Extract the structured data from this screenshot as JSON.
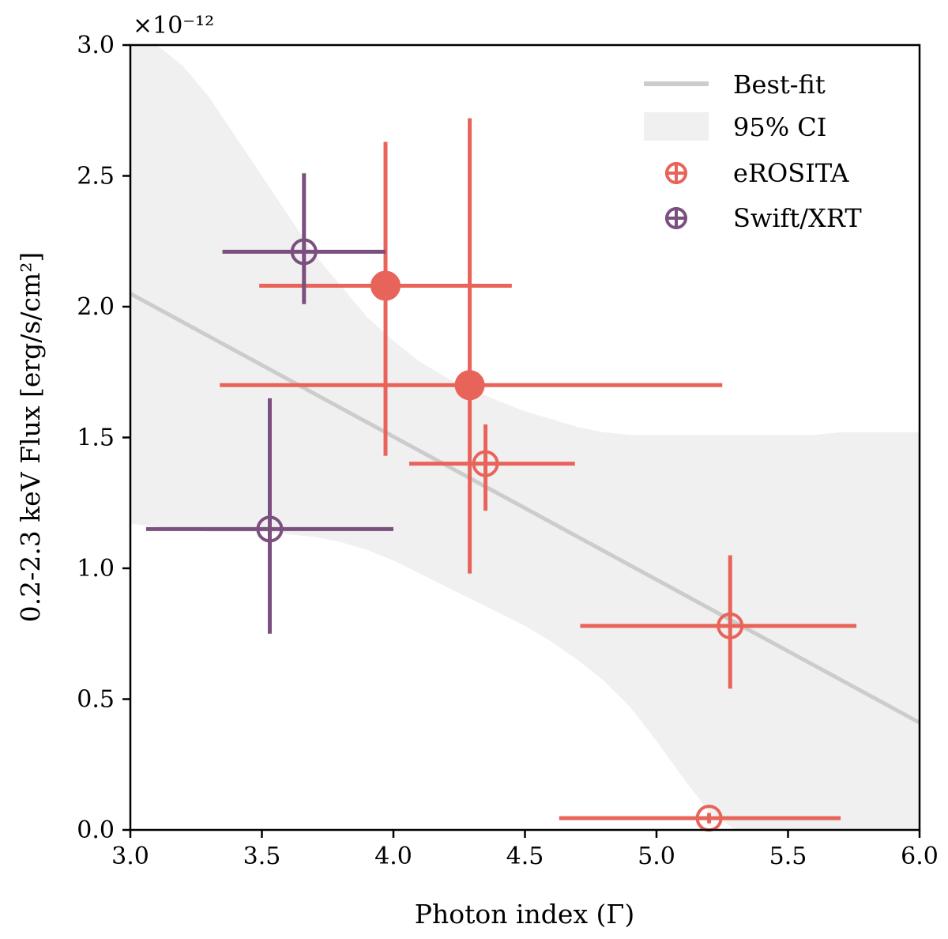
{
  "chart_data": {
    "type": "scatter",
    "title": "",
    "xlabel": "Photon index (Γ)",
    "ylabel": "0.2-2.3 keV Flux [erg/s/cm²]",
    "y_multiplier": "×10⁻¹²",
    "xlim": [
      3.0,
      6.0
    ],
    "ylim": [
      0.0,
      3.0
    ],
    "xticks": [
      "3.0",
      "3.5",
      "4.0",
      "4.5",
      "5.0",
      "5.5",
      "6.0"
    ],
    "yticks": [
      "0.0",
      "0.5",
      "1.0",
      "1.5",
      "2.0",
      "2.5",
      "3.0"
    ],
    "grid": false,
    "legend_position": "top-right",
    "fit": {
      "name": "Best-fit",
      "color": "#cccccc",
      "x": [
        3.0,
        6.0
      ],
      "y": [
        2.05,
        0.41
      ]
    },
    "confidence_band": {
      "name": "95% CI",
      "color": "#f0f0f0",
      "x": [
        3.0,
        3.1,
        3.2,
        3.3,
        3.4,
        3.5,
        3.6,
        3.7,
        3.8,
        3.9,
        4.0,
        4.1,
        4.2,
        4.3,
        4.4,
        4.5,
        4.6,
        4.7,
        4.8,
        4.9,
        5.0,
        5.1,
        5.2,
        5.3,
        5.4,
        5.5,
        5.6,
        5.7,
        5.8,
        5.9,
        6.0
      ],
      "upper": [
        3.0,
        3.0,
        2.92,
        2.8,
        2.65,
        2.5,
        2.35,
        2.2,
        2.08,
        1.96,
        1.87,
        1.79,
        1.73,
        1.68,
        1.64,
        1.6,
        1.57,
        1.54,
        1.52,
        1.51,
        1.51,
        1.51,
        1.51,
        1.51,
        1.51,
        1.51,
        1.51,
        1.52,
        1.52,
        1.52,
        1.52
      ],
      "lower": [
        1.17,
        1.16,
        1.15,
        1.14,
        1.14,
        1.14,
        1.13,
        1.12,
        1.1,
        1.07,
        1.03,
        0.98,
        0.93,
        0.88,
        0.83,
        0.78,
        0.72,
        0.65,
        0.57,
        0.47,
        0.34,
        0.2,
        0.07,
        0.0,
        0.0,
        0.0,
        0.0,
        0.0,
        0.0,
        0.0,
        0.0
      ]
    },
    "series": [
      {
        "name": "eROSITA",
        "color": "#e8645a",
        "points": [
          {
            "x": 3.97,
            "y": 2.08,
            "x_lo": 3.49,
            "x_hi": 4.45,
            "y_lo": 1.43,
            "y_hi": 2.63,
            "filled": true
          },
          {
            "x": 4.29,
            "y": 1.7,
            "x_lo": 3.34,
            "x_hi": 5.25,
            "y_lo": 0.98,
            "y_hi": 2.72,
            "filled": true
          },
          {
            "x": 4.35,
            "y": 1.4,
            "x_lo": 4.06,
            "x_hi": 4.69,
            "y_lo": 1.22,
            "y_hi": 1.55,
            "filled": false
          },
          {
            "x": 5.28,
            "y": 0.78,
            "x_lo": 4.71,
            "x_hi": 5.76,
            "y_lo": 0.54,
            "y_hi": 1.05,
            "filled": false
          },
          {
            "x": 5.2,
            "y": 0.045,
            "x_lo": 4.63,
            "x_hi": 5.7,
            "y_lo": 0.025,
            "y_hi": 0.065,
            "filled": false
          }
        ]
      },
      {
        "name": "Swift/XRT",
        "color": "#7b4f7e",
        "points": [
          {
            "x": 3.66,
            "y": 2.21,
            "x_lo": 3.35,
            "x_hi": 3.97,
            "y_lo": 2.01,
            "y_hi": 2.51,
            "filled": false
          },
          {
            "x": 3.53,
            "y": 1.15,
            "x_lo": 3.06,
            "x_hi": 4.0,
            "y_lo": 0.75,
            "y_hi": 1.65,
            "filled": false
          }
        ]
      }
    ]
  }
}
